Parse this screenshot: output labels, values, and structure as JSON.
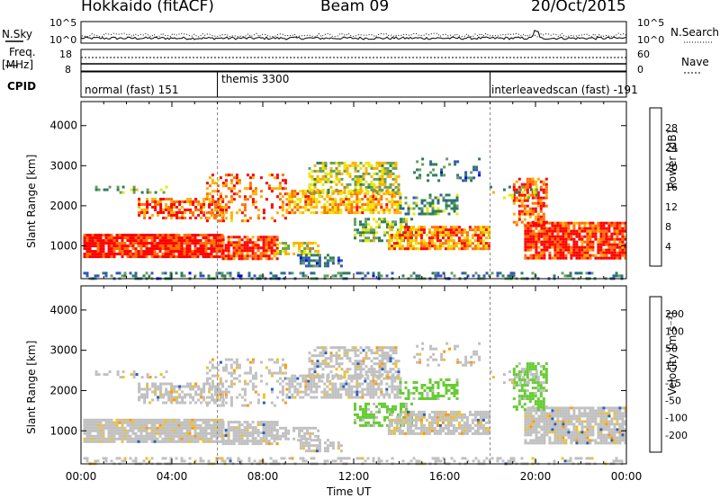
{
  "header": {
    "station": "Hokkaido (fitACF)",
    "beam": "Beam 09",
    "date": "20/Oct/2015"
  },
  "summary": {
    "nsky_label": "N.Sky",
    "nsky_ticks": [
      "10^5",
      "10^0"
    ],
    "nsearch_label": "N.Search",
    "nsearch_ticks": [
      "10^5",
      "10^0"
    ],
    "freq_label": "Freq.",
    "freq_unit": "[MHz]",
    "freq_ticks": [
      "18",
      "8"
    ],
    "nave_label": "Nave",
    "nave_ticks": [
      "60",
      "0"
    ],
    "cpid_label": "CPID",
    "cpid_segments": [
      {
        "label": "normal (fast) 151",
        "start_h": 0,
        "end_h": 6
      },
      {
        "label": "themis 3300",
        "start_h": 6,
        "end_h": 18
      },
      {
        "label": "interleavedscan (fast) -191",
        "start_h": 18,
        "end_h": 24
      }
    ]
  },
  "chart_data": [
    {
      "type": "heatmap",
      "name": "power",
      "ylabel": "Slant Range [km]",
      "xlabel": "",
      "ylim": [
        180,
        4600
      ],
      "yticks": [
        "1000",
        "2000",
        "3000",
        "4000"
      ],
      "xlim_hours": [
        0,
        24
      ],
      "colorbar_label": "Power [dB]",
      "colorbar_ticks": [
        "4",
        "8",
        "12",
        "16",
        "20",
        "24",
        "28"
      ],
      "colorbar_colors": [
        "#0000ff",
        "#3355bb",
        "#2e7d5a",
        "#66a060",
        "#e8e800",
        "#ffb000",
        "#ff7000",
        "#ff0000"
      ]
    },
    {
      "type": "heatmap",
      "name": "velocity",
      "ylabel": "Slant Range [km]",
      "xlabel": "Time UT",
      "ylim": [
        180,
        4600
      ],
      "yticks": [
        "1000",
        "2000",
        "3000",
        "4000"
      ],
      "xlim_hours": [
        0,
        24
      ],
      "xticks": [
        "00:00",
        "04:00",
        "08:00",
        "12:00",
        "16:00",
        "20:00",
        "00:00"
      ],
      "colorbar_label": "Velocity [m s⁻¹]",
      "colorbar_ticks": [
        "-200",
        "-100",
        "-50",
        "-15",
        "15",
        "50",
        "100",
        "200"
      ],
      "colorbar_colors": [
        "#ff0000",
        "#ff6000",
        "#ff9900",
        "#f0c020",
        "#c0c0c0",
        "#66cc33",
        "#2e8b57",
        "#2a5dbe",
        "#0000ff"
      ]
    }
  ]
}
